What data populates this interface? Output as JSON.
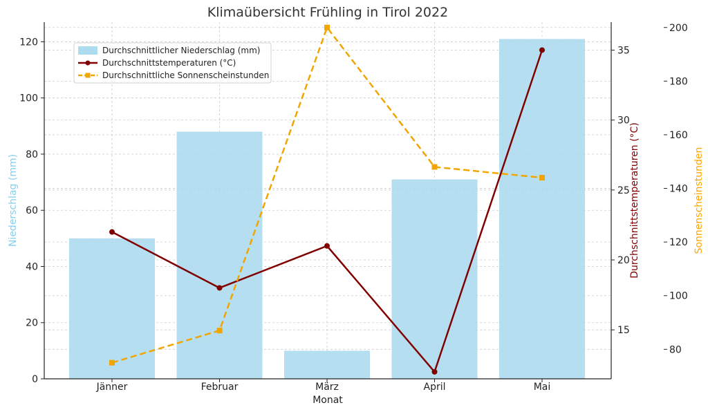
{
  "chart_data": {
    "type": "bar",
    "title": "Klimaübersicht Frühling in Tirol 2022",
    "xlabel": "Monat",
    "categories": [
      "Jänner",
      "Februar",
      "März",
      "April",
      "Mai"
    ],
    "axes": {
      "left": {
        "label": "Niederschlag (mm)",
        "range": [
          0,
          127
        ],
        "ticks": [
          0,
          20,
          40,
          60,
          80,
          100,
          120
        ],
        "color": "#87CEEB"
      },
      "right1": {
        "label": "Durchschnittstemperaturen (°C)",
        "range": [
          11.5,
          37.0
        ],
        "ticks": [
          15,
          20,
          25,
          30,
          35
        ],
        "color": "#800000"
      },
      "right2": {
        "label": "Sonnenscheinstunden",
        "range": [
          69,
          202
        ],
        "ticks": [
          80,
          100,
          120,
          140,
          160,
          180,
          200
        ],
        "color": "#FFA500"
      }
    },
    "series": [
      {
        "name": "Durchschnittlicher Niederschlag (mm)",
        "kind": "bar",
        "axis": "left",
        "color": "#ADDCEE",
        "values": [
          50,
          88,
          10,
          71,
          121
        ]
      },
      {
        "name": "Durchschnittstemperaturen (°C)",
        "kind": "line",
        "axis": "right1",
        "color": "#800000",
        "marker": "circle",
        "values": [
          22,
          18,
          21,
          12,
          35
        ]
      },
      {
        "name": "Durchschnittliche Sonnenscheinstunden",
        "kind": "line",
        "axis": "right2",
        "color": "#F0A500",
        "marker": "square",
        "dashed": true,
        "values": [
          75,
          87,
          200,
          148,
          144
        ]
      }
    ],
    "grid": true,
    "legend_position": "top-left"
  }
}
